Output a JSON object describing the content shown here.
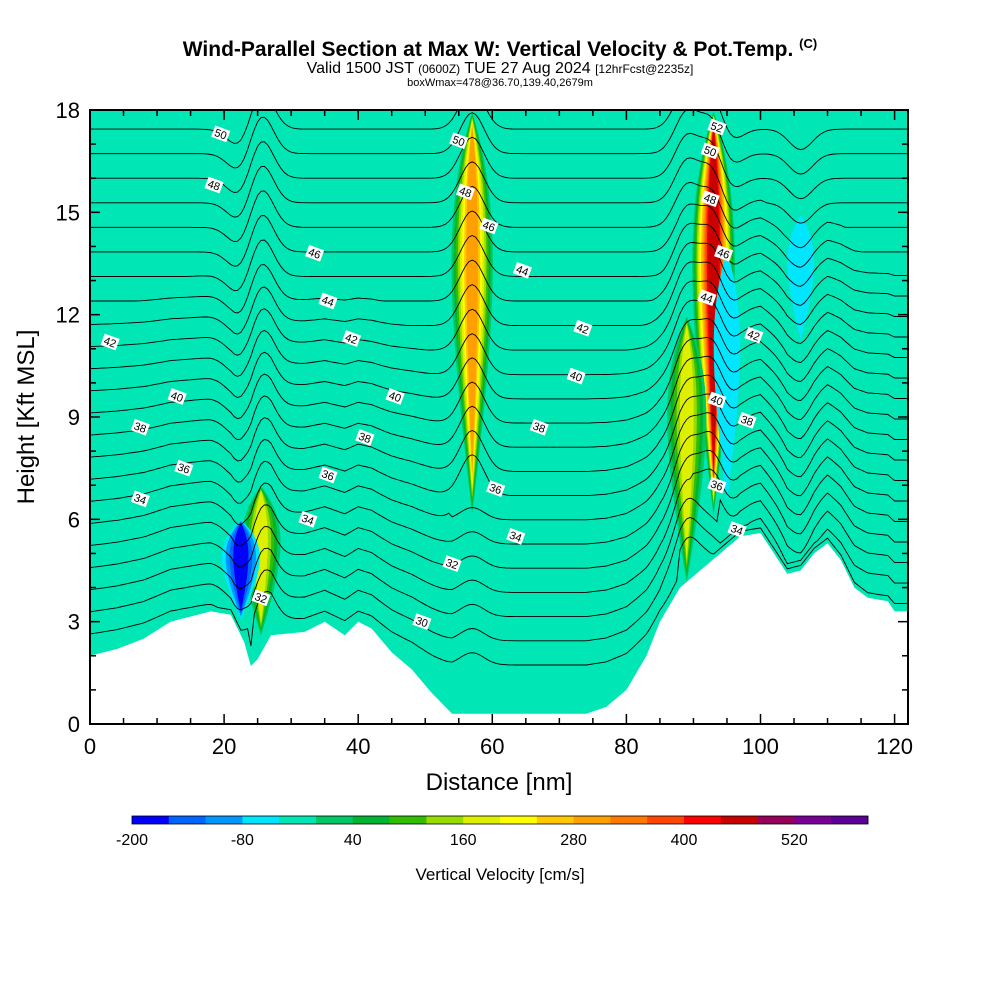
{
  "header": {
    "title": "Wind-Parallel Section at Max W: Vertical Velocity & Pot.Temp.",
    "copyright": "(C)",
    "valid_prefix": "Valid 1500 JST",
    "valid_utc": "(0600Z)",
    "valid_date": "TUE 27 Aug 2024",
    "forecast": "[12hrFcst@2235z]",
    "boxinfo": "boxWmax=478@36.70,139.40,2679m"
  },
  "chart_data": {
    "type": "contour-section",
    "xlabel": "Distance [nm]",
    "ylabel": "Height [Kft MSL]",
    "xlim": [
      0,
      122
    ],
    "ylim": [
      0,
      18
    ],
    "x_ticks": [
      0,
      20,
      40,
      60,
      80,
      100,
      120
    ],
    "y_ticks": [
      0,
      3,
      6,
      9,
      12,
      15,
      18
    ],
    "colorbar": {
      "title": "Vertical Velocity [cm/s]",
      "labels": [
        "-200",
        "-80",
        "40",
        "160",
        "280",
        "400",
        "520"
      ],
      "colors": [
        "#0000ff",
        "#0064ff",
        "#0096ff",
        "#00e6ff",
        "#00e6b4",
        "#00c864",
        "#00b432",
        "#32be00",
        "#96dc00",
        "#dcf000",
        "#ffff00",
        "#ffc800",
        "#ffa000",
        "#ff7800",
        "#ff4600",
        "#ff0000",
        "#c80000",
        "#96005a",
        "#780096",
        "#5a0096"
      ]
    },
    "background_color": "#00e6b4",
    "terrain": [
      [
        0,
        2.0
      ],
      [
        4,
        2.2
      ],
      [
        8,
        2.5
      ],
      [
        12,
        3.0
      ],
      [
        14,
        3.1
      ],
      [
        18,
        3.3
      ],
      [
        21,
        3.2
      ],
      [
        23,
        2.4
      ],
      [
        24,
        1.7
      ],
      [
        25,
        1.9
      ],
      [
        27,
        2.6
      ],
      [
        32,
        2.7
      ],
      [
        35,
        3.0
      ],
      [
        38,
        2.6
      ],
      [
        40,
        3.0
      ],
      [
        42,
        2.8
      ],
      [
        45,
        2.1
      ],
      [
        48,
        1.6
      ],
      [
        51,
        0.9
      ],
      [
        54,
        0.3
      ],
      [
        56,
        0.3
      ],
      [
        60,
        0.3
      ],
      [
        66,
        0.3
      ],
      [
        70,
        0.3
      ],
      [
        74,
        0.3
      ],
      [
        77,
        0.5
      ],
      [
        80,
        1.0
      ],
      [
        83,
        2.0
      ],
      [
        85,
        3.0
      ],
      [
        88,
        4.0
      ],
      [
        91,
        4.5
      ],
      [
        94,
        5.0
      ],
      [
        97,
        5.5
      ],
      [
        100,
        5.6
      ],
      [
        102,
        5.0
      ],
      [
        104,
        4.4
      ],
      [
        106,
        4.5
      ],
      [
        108,
        5.0
      ],
      [
        110,
        5.3
      ],
      [
        112,
        4.8
      ],
      [
        114,
        4.0
      ],
      [
        116,
        3.7
      ],
      [
        119,
        3.6
      ],
      [
        120,
        3.3
      ],
      [
        122,
        3.3
      ]
    ],
    "updraft_cores": [
      {
        "x": 57,
        "y_bottom": 6,
        "y_top": 18,
        "w_max": 280
      },
      {
        "x": 93,
        "y_bottom": 6,
        "y_top": 18,
        "w_max": 478
      },
      {
        "x": 25.5,
        "y_bottom": 2.5,
        "y_top": 7,
        "w_max": 160
      },
      {
        "x": 89,
        "y_bottom": 4,
        "y_top": 12,
        "w_max": 160
      }
    ],
    "downdraft_cores": [
      {
        "x": 22.5,
        "y_bottom": 3,
        "y_top": 6,
        "w_min": -200
      },
      {
        "x": 95,
        "y_bottom": 6,
        "y_top": 14,
        "w_min": -80
      },
      {
        "x": 106,
        "y_bottom": 11,
        "y_top": 15,
        "w_min": -80
      }
    ],
    "theta_levels": [
      30,
      31,
      32,
      33,
      34,
      35,
      36,
      37,
      38,
      39,
      40,
      41,
      42,
      43,
      44,
      45,
      46,
      47,
      48,
      49,
      50,
      51,
      52
    ],
    "theta_labels": [
      {
        "text": "50",
        "x": 19.5,
        "y": 17.3
      },
      {
        "text": "48",
        "x": 18.5,
        "y": 15.8
      },
      {
        "text": "46",
        "x": 33.5,
        "y": 13.8
      },
      {
        "text": "44",
        "x": 35.5,
        "y": 12.4
      },
      {
        "text": "42",
        "x": 3,
        "y": 11.2
      },
      {
        "text": "42",
        "x": 39,
        "y": 11.3
      },
      {
        "text": "40",
        "x": 13,
        "y": 9.6
      },
      {
        "text": "40",
        "x": 45.5,
        "y": 9.6
      },
      {
        "text": "38",
        "x": 7.5,
        "y": 8.7
      },
      {
        "text": "38",
        "x": 41,
        "y": 8.4
      },
      {
        "text": "38",
        "x": 67,
        "y": 8.7
      },
      {
        "text": "38",
        "x": 98,
        "y": 8.9
      },
      {
        "text": "36",
        "x": 14,
        "y": 7.5
      },
      {
        "text": "36",
        "x": 35.5,
        "y": 7.3
      },
      {
        "text": "36",
        "x": 60.5,
        "y": 6.9
      },
      {
        "text": "36",
        "x": 93.5,
        "y": 7.0
      },
      {
        "text": "34",
        "x": 7.5,
        "y": 6.6
      },
      {
        "text": "34",
        "x": 32.5,
        "y": 6.0
      },
      {
        "text": "34",
        "x": 63.5,
        "y": 5.5
      },
      {
        "text": "34",
        "x": 96.5,
        "y": 5.7
      },
      {
        "text": "32",
        "x": 25.5,
        "y": 3.7
      },
      {
        "text": "32",
        "x": 54,
        "y": 4.7
      },
      {
        "text": "30",
        "x": 49.5,
        "y": 3.0
      },
      {
        "text": "50",
        "x": 55,
        "y": 17.1
      },
      {
        "text": "48",
        "x": 56,
        "y": 15.6
      },
      {
        "text": "46",
        "x": 59.5,
        "y": 14.6
      },
      {
        "text": "44",
        "x": 64.5,
        "y": 13.3
      },
      {
        "text": "42",
        "x": 73.5,
        "y": 11.6
      },
      {
        "text": "40",
        "x": 72.5,
        "y": 10.2
      },
      {
        "text": "52",
        "x": 93.5,
        "y": 17.5
      },
      {
        "text": "50",
        "x": 92.5,
        "y": 16.8
      },
      {
        "text": "48",
        "x": 92.5,
        "y": 15.4
      },
      {
        "text": "46",
        "x": 94.5,
        "y": 13.8
      },
      {
        "text": "44",
        "x": 92,
        "y": 12.5
      },
      {
        "text": "42",
        "x": 99,
        "y": 11.4
      },
      {
        "text": "40",
        "x": 93.5,
        "y": 9.5
      }
    ]
  }
}
